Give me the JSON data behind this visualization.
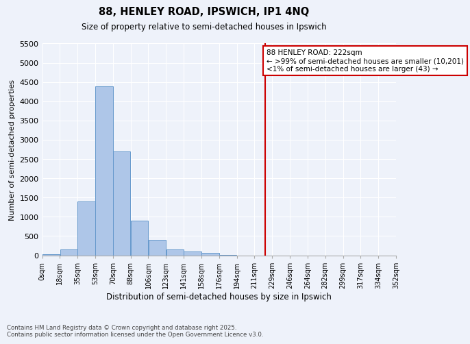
{
  "title1": "88, HENLEY ROAD, IPSWICH, IP1 4NQ",
  "title2": "Size of property relative to semi-detached houses in Ipswich",
  "xlabel": "Distribution of semi-detached houses by size in Ipswich",
  "ylabel": "Number of semi-detached properties",
  "bar_values": [
    30,
    160,
    1390,
    4380,
    2700,
    900,
    410,
    160,
    90,
    60,
    10,
    0,
    0,
    0,
    0,
    0,
    0,
    0,
    0,
    0
  ],
  "bin_edges": [
    0,
    17.6,
    35.2,
    52.8,
    70.4,
    88.0,
    105.6,
    123.2,
    140.8,
    158.4,
    176.0,
    193.6,
    211.2,
    228.8,
    246.4,
    264.0,
    281.6,
    299.2,
    316.8,
    334.4,
    352.0
  ],
  "tick_labels": [
    "0sqm",
    "18sqm",
    "35sqm",
    "53sqm",
    "70sqm",
    "88sqm",
    "106sqm",
    "123sqm",
    "141sqm",
    "158sqm",
    "176sqm",
    "194sqm",
    "211sqm",
    "229sqm",
    "246sqm",
    "264sqm",
    "282sqm",
    "299sqm",
    "317sqm",
    "334sqm",
    "352sqm"
  ],
  "bar_color": "#aec6e8",
  "bar_edge_color": "#6699cc",
  "vline_x": 222,
  "vline_color": "#cc0000",
  "annotation_title": "88 HENLEY ROAD: 222sqm",
  "annotation_line1": "← >99% of semi-detached houses are smaller (10,201)",
  "annotation_line2": "<1% of semi-detached houses are larger (43) →",
  "annotation_box_color": "#cc0000",
  "ylim": [
    0,
    5500
  ],
  "yticks": [
    0,
    500,
    1000,
    1500,
    2000,
    2500,
    3000,
    3500,
    4000,
    4500,
    5000,
    5500
  ],
  "bg_color": "#eef2fa",
  "footer1": "Contains HM Land Registry data © Crown copyright and database right 2025.",
  "footer2": "Contains public sector information licensed under the Open Government Licence v3.0."
}
